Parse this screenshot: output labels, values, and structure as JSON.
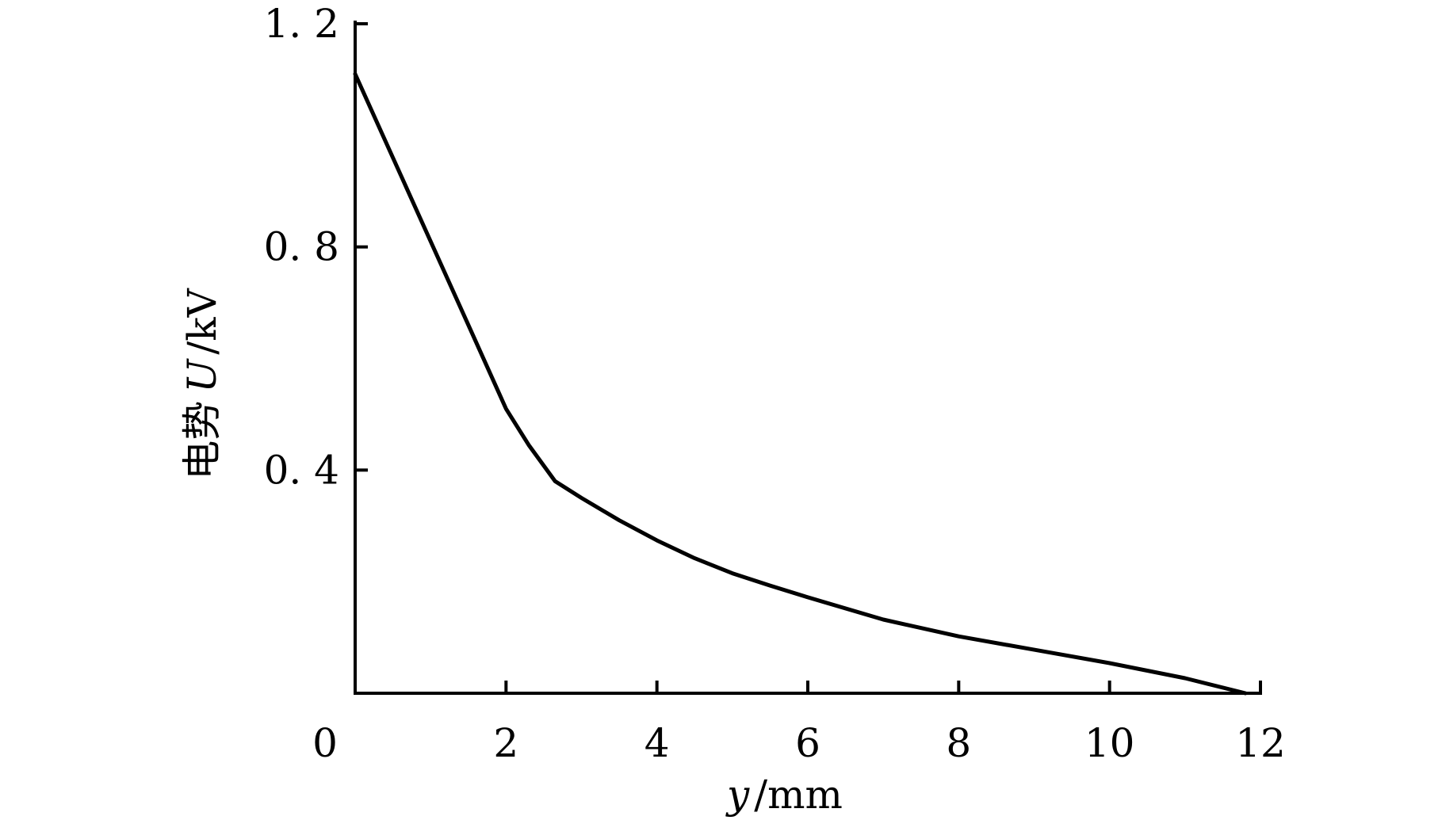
{
  "chart_data": {
    "type": "line",
    "title": "",
    "xlabel_var": "y",
    "xlabel_unit": "/mm",
    "ylabel_prefix": "电势",
    "ylabel_var": "U",
    "ylabel_unit": "/kV",
    "xlim": [
      0,
      12
    ],
    "ylim": [
      0,
      1.2
    ],
    "x_ticks": [
      0,
      2,
      4,
      6,
      8,
      10,
      12
    ],
    "x_tick_labels": [
      "0",
      "2",
      "4",
      "6",
      "8",
      "10",
      "12"
    ],
    "y_ticks": [
      0.4,
      0.8,
      1.2
    ],
    "y_tick_labels": [
      "0. 4",
      "0. 8",
      "1. 2"
    ],
    "grid": false,
    "legend": "none",
    "series": [
      {
        "color": "#000000",
        "x": [
          0,
          0.5,
          1.0,
          1.5,
          2.0,
          2.3,
          2.65,
          3.0,
          3.5,
          4.0,
          4.5,
          5.0,
          5.5,
          6.0,
          7.0,
          8.0,
          9.0,
          10.0,
          11.0,
          11.8
        ],
        "y": [
          1.11,
          0.96,
          0.81,
          0.66,
          0.51,
          0.445,
          0.38,
          0.35,
          0.31,
          0.274,
          0.242,
          0.215,
          0.193,
          0.172,
          0.132,
          0.102,
          0.078,
          0.054,
          0.027,
          0.0
        ]
      }
    ]
  }
}
